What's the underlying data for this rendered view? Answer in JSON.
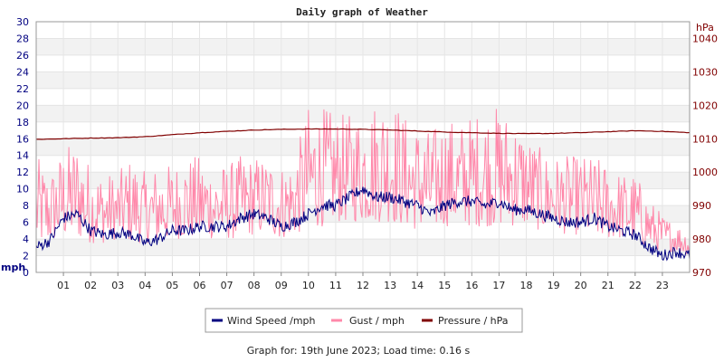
{
  "chart_data": {
    "type": "line",
    "title": "Daily graph of Weather",
    "footer": "Graph for: 19th June 2023; Load time: 0.16 s",
    "left_axis": {
      "label": "mph",
      "ylim": [
        0,
        30
      ],
      "ticks": [
        0,
        2,
        4,
        6,
        8,
        10,
        12,
        14,
        16,
        18,
        20,
        22,
        24,
        26,
        28,
        30
      ],
      "color": "#000080"
    },
    "right_axis": {
      "label": "hPa",
      "ylim": [
        970,
        1045
      ],
      "ticks": [
        970,
        980,
        990,
        1000,
        1010,
        1020,
        1030,
        1040
      ],
      "color": "#800000"
    },
    "x_ticks": [
      "01",
      "02",
      "03",
      "04",
      "05",
      "06",
      "07",
      "08",
      "09",
      "10",
      "11",
      "12",
      "13",
      "14",
      "15",
      "16",
      "17",
      "18",
      "19",
      "20",
      "21",
      "22",
      "23"
    ],
    "x_range_hours": [
      0,
      24
    ],
    "grid": true,
    "legend_position": "bottom",
    "series": [
      {
        "name": "Wind Speed /mph",
        "axis": "left",
        "color": "#000080",
        "x_hours": [
          0,
          0.5,
          1,
          1.5,
          2,
          2.5,
          3,
          3.5,
          4,
          4.5,
          5,
          5.5,
          6,
          6.5,
          7,
          7.5,
          8,
          8.5,
          9,
          9.5,
          10,
          10.5,
          11,
          11.5,
          12,
          12.5,
          13,
          13.5,
          14,
          14.5,
          15,
          15.5,
          16,
          16.5,
          17,
          17.5,
          18,
          18.5,
          19,
          19.5,
          20,
          20.5,
          21,
          21.5,
          22,
          22.5,
          23,
          23.5,
          24
        ],
        "values": [
          3,
          3.8,
          6.5,
          7,
          5,
          4.5,
          4.8,
          4.5,
          3.5,
          4,
          5,
          5,
          5.5,
          5.5,
          5.5,
          6.5,
          7,
          6.5,
          5.5,
          6,
          7,
          8,
          8,
          9,
          10,
          9,
          9,
          8.5,
          8,
          7,
          8,
          8.5,
          8.5,
          8,
          8.5,
          7.5,
          7.5,
          7,
          6.5,
          6,
          6,
          6.5,
          5.5,
          5,
          4.5,
          3,
          2,
          2.5,
          2
        ]
      },
      {
        "name": "Gust / mph",
        "axis": "left",
        "color": "#ff88aa",
        "x_hours": [
          0,
          0.5,
          1,
          1.5,
          2,
          2.5,
          3,
          3.5,
          4,
          4.5,
          5,
          5.5,
          6,
          6.5,
          7,
          7.5,
          8,
          8.5,
          9,
          9.5,
          10,
          10.5,
          11,
          11.5,
          12,
          12.5,
          13,
          13.5,
          14,
          14.5,
          15,
          15.5,
          16,
          16.5,
          17,
          17.5,
          18,
          18.5,
          19,
          19.5,
          20,
          20.5,
          21,
          21.5,
          22,
          22.5,
          23,
          23.5,
          24
        ],
        "min_values": [
          3,
          3.5,
          4,
          4,
          3.5,
          3.5,
          4,
          3.5,
          3.5,
          3.5,
          4,
          4,
          4,
          4,
          4,
          4,
          4.5,
          4.5,
          4,
          4.5,
          5,
          5.5,
          6,
          6,
          6,
          6,
          6,
          5.5,
          5,
          5,
          5.5,
          5.5,
          5.5,
          5.5,
          5.5,
          5.5,
          5.5,
          5,
          5,
          4.5,
          4.5,
          4,
          4,
          4,
          3.5,
          3,
          2.5,
          2.5,
          2
        ],
        "max_values": [
          14,
          12,
          15,
          16,
          13,
          12,
          12,
          14,
          12,
          13,
          13,
          14,
          14,
          13,
          13,
          14,
          14,
          14,
          13,
          14,
          20,
          20,
          19,
          19,
          20,
          21,
          22,
          19,
          18,
          17,
          19,
          18,
          19,
          20,
          20,
          19,
          17,
          15,
          14,
          14,
          14,
          14,
          13,
          12,
          12,
          9,
          7,
          6,
          5
        ]
      },
      {
        "name": "Pressure / hPa",
        "axis": "right",
        "color": "#800000",
        "x_hours": [
          0,
          1,
          2,
          3,
          4,
          5,
          6,
          7,
          8,
          9,
          10,
          11,
          12,
          13,
          14,
          15,
          16,
          17,
          18,
          19,
          20,
          21,
          22,
          23,
          24
        ],
        "values": [
          1009.8,
          1010,
          1010.2,
          1010.3,
          1010.6,
          1011.2,
          1011.8,
          1012.2,
          1012.6,
          1012.8,
          1012.9,
          1012.9,
          1012.8,
          1012.6,
          1012.3,
          1012,
          1011.8,
          1011.6,
          1011.5,
          1011.6,
          1011.8,
          1012.1,
          1012.4,
          1012.2,
          1011.8
        ]
      }
    ]
  }
}
